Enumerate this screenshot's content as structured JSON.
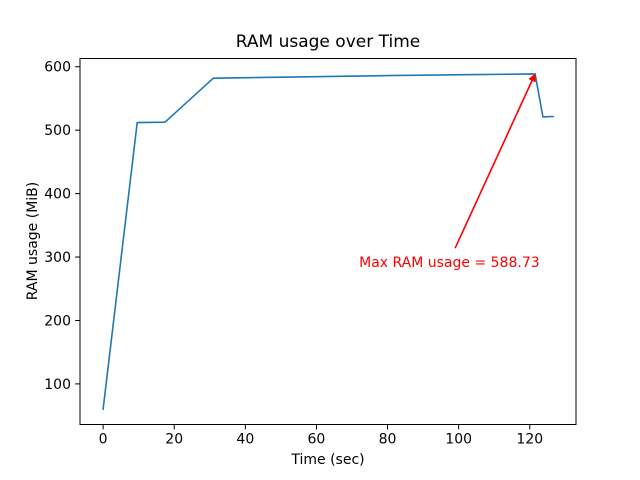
{
  "chart_data": {
    "type": "line",
    "title": "RAM usage over Time",
    "xlabel": "Time (sec)",
    "ylabel": "RAM usage (MiB)",
    "xlim": [
      -6.5,
      133
    ],
    "ylim": [
      36,
      613
    ],
    "xticks": [
      0,
      20,
      40,
      60,
      80,
      100,
      120
    ],
    "yticks": [
      100,
      200,
      300,
      400,
      500,
      600
    ],
    "grid": false,
    "legend": false,
    "background_color": "#ffffff",
    "spine_color": "#000000",
    "series": [
      {
        "name": "RAM usage",
        "color": "#1f77b4",
        "x": [
          0,
          9.6,
          17.4,
          31,
          55,
          80,
          105,
          118,
          121.5,
          123.7,
          126.6
        ],
        "y": [
          60,
          512,
          512.5,
          582,
          584,
          586,
          587.6,
          588.4,
          588.73,
          521,
          521.5
        ]
      }
    ],
    "max_ram_usage": 588.73,
    "annotation": {
      "text": "Max RAM usage = 588.73",
      "color": "#ff0000",
      "text_pos": {
        "x": 72,
        "y": 284
      },
      "arrow_from": {
        "x": 99,
        "y": 314
      },
      "arrow_to": {
        "x": 121.5,
        "y": 588.73
      }
    }
  }
}
